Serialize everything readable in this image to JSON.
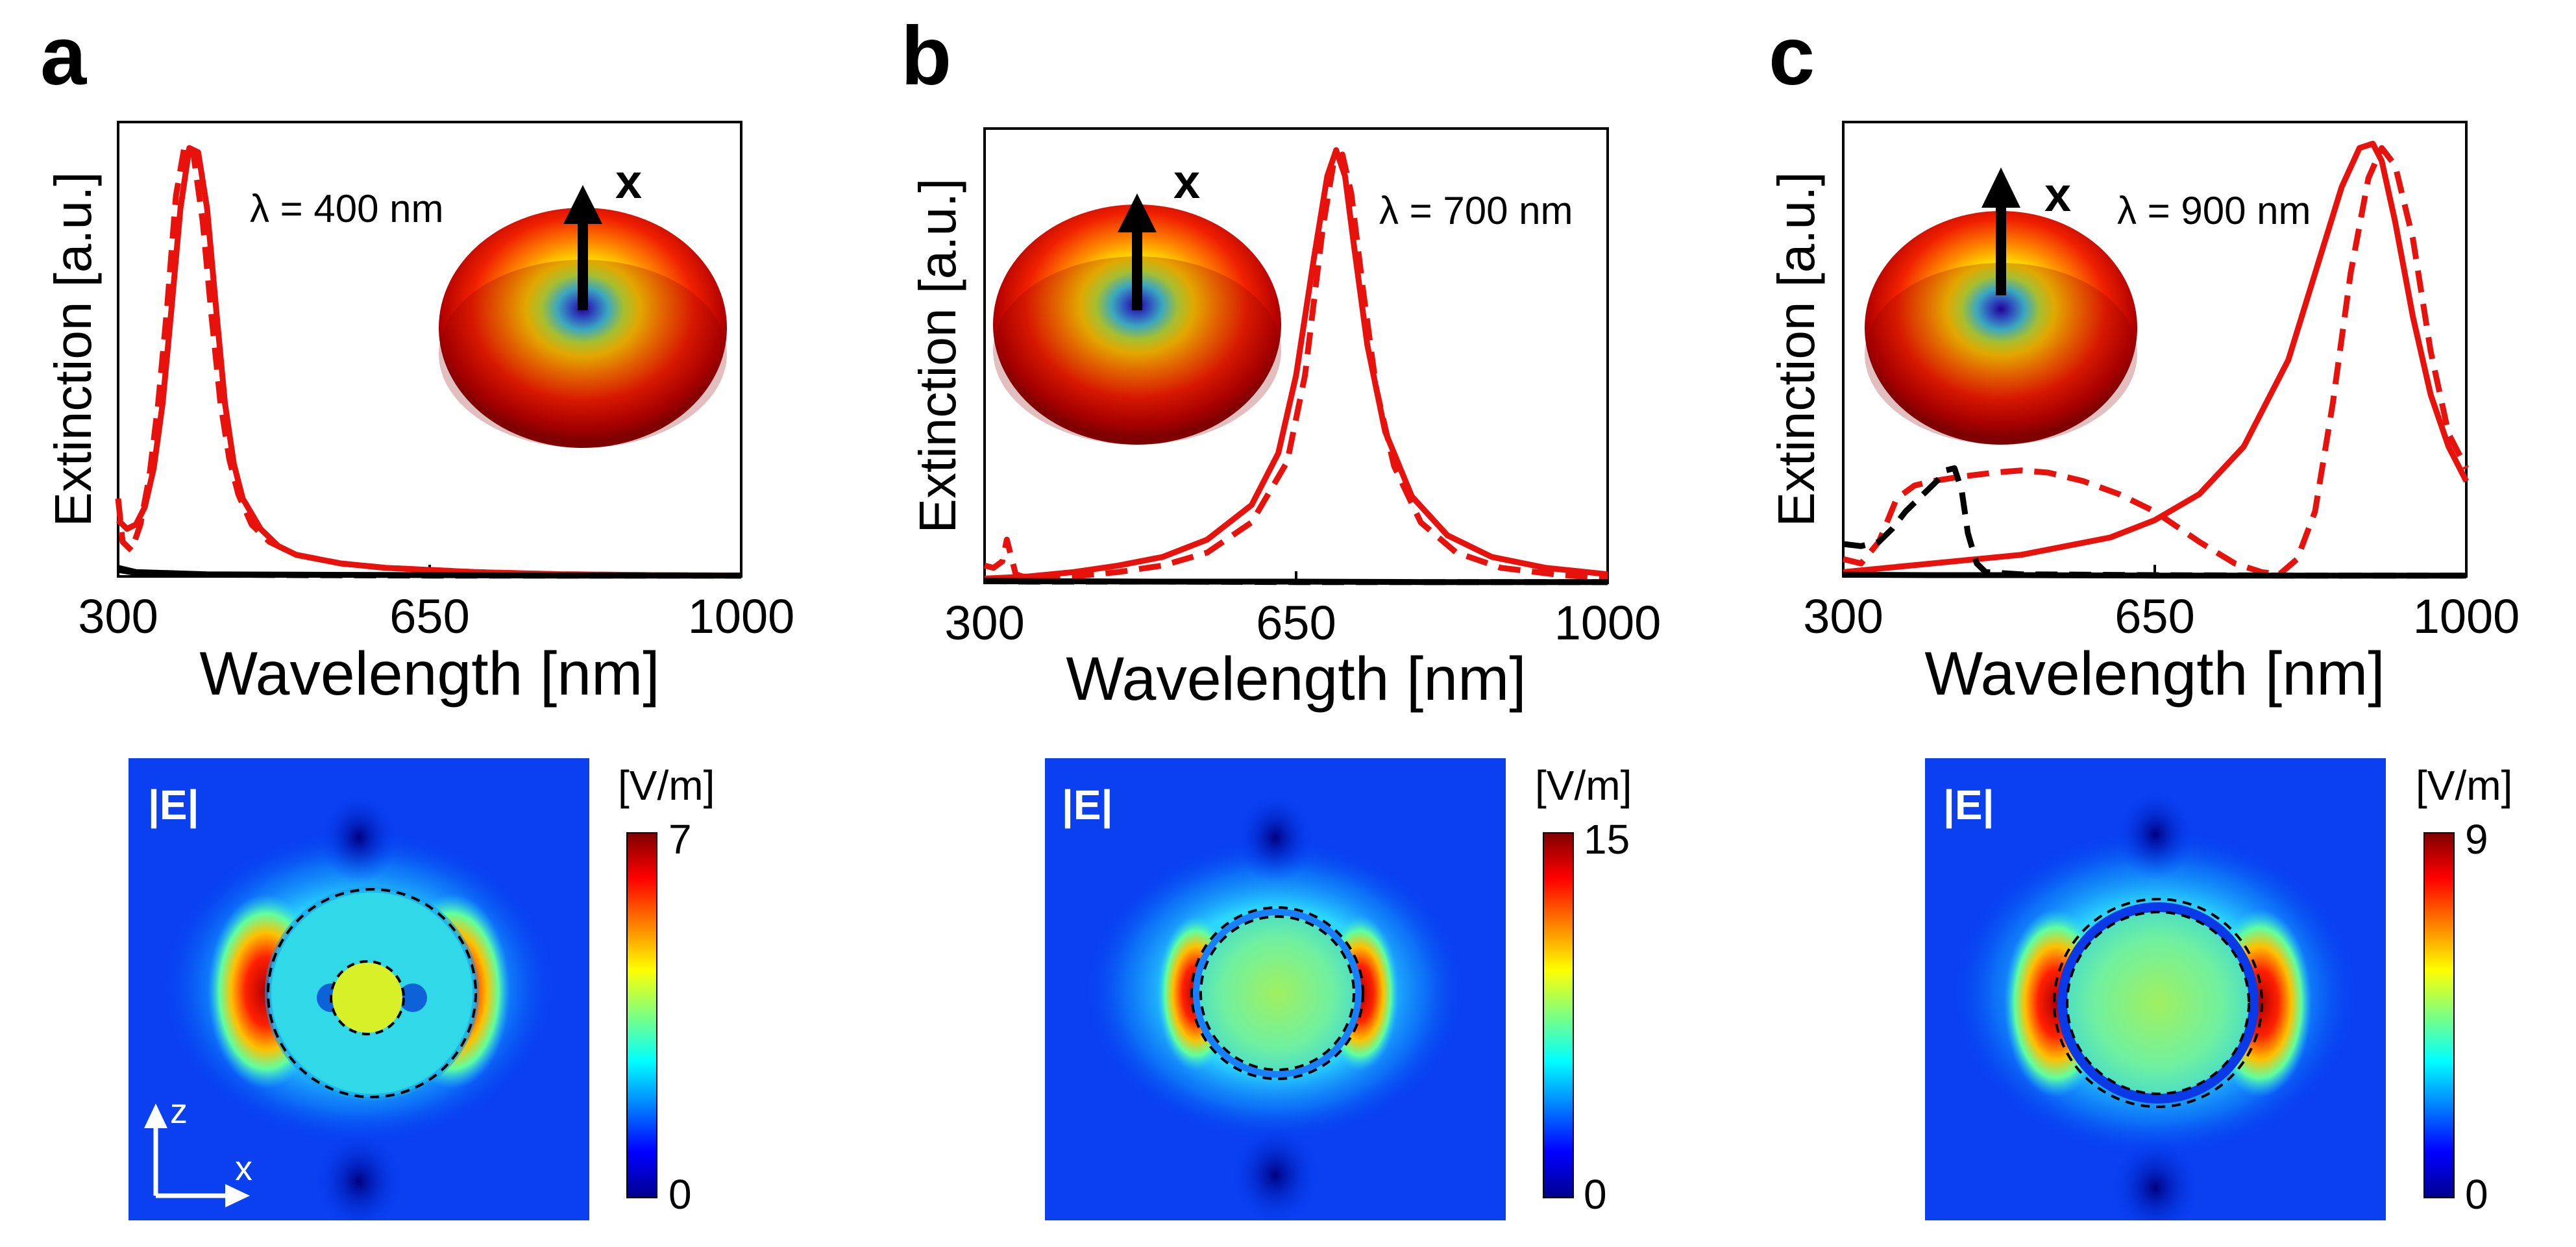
{
  "chart_data": [
    {
      "panel_label": "a",
      "type": "line",
      "xlabel": "Wavelength [nm]",
      "ylabel": "Extinction [a.u.]",
      "xlim": [
        300,
        1000
      ],
      "ylim": [
        0,
        1.05
      ],
      "xticks": [
        "300",
        "650",
        "1000"
      ],
      "annotation": "λ = 400 nm",
      "dipole_axis_label": "x",
      "series": [
        {
          "name": "solid-red",
          "color": "#e8120c",
          "style": "solid",
          "x": [
            300,
            310,
            320,
            330,
            340,
            350,
            360,
            370,
            380,
            390,
            400,
            410,
            420,
            430,
            440,
            460,
            480,
            500,
            550,
            600,
            650,
            700,
            800,
            900,
            1000
          ],
          "y": [
            0.13,
            0.11,
            0.12,
            0.16,
            0.25,
            0.4,
            0.62,
            0.85,
            0.99,
            0.98,
            0.85,
            0.62,
            0.4,
            0.26,
            0.18,
            0.11,
            0.07,
            0.05,
            0.03,
            0.02,
            0.015,
            0.01,
            0.005,
            0.003,
            0.002
          ]
        },
        {
          "name": "dashed-red",
          "color": "#e8120c",
          "style": "dashed",
          "x": [
            300,
            305,
            315,
            325,
            335,
            345,
            355,
            365,
            375,
            385,
            395,
            405,
            415,
            425,
            435,
            450,
            470,
            500,
            550,
            600,
            650,
            700,
            800,
            900,
            1000
          ],
          "y": [
            0.18,
            0.08,
            0.06,
            0.12,
            0.23,
            0.4,
            0.62,
            0.88,
            1.0,
            0.97,
            0.82,
            0.6,
            0.4,
            0.27,
            0.19,
            0.12,
            0.08,
            0.05,
            0.03,
            0.02,
            0.015,
            0.01,
            0.005,
            0.003,
            0.002
          ]
        },
        {
          "name": "solid-black",
          "color": "#000000",
          "style": "solid",
          "x": [
            300,
            320,
            400,
            500,
            650,
            800,
            1000
          ],
          "y": [
            0.02,
            0.01,
            0.005,
            0.004,
            0.003,
            0.002,
            0.002
          ]
        },
        {
          "name": "dashed-black",
          "color": "#000000",
          "style": "dashed",
          "x": [
            300,
            320,
            400,
            500,
            650,
            800,
            1000
          ],
          "y": [
            0.015,
            0.008,
            0.004,
            0.003,
            0.002,
            0.002,
            0.002
          ]
        }
      ],
      "colorbar": {
        "unit": "[V/m]",
        "max_label": "7",
        "min_label": "0"
      },
      "field_label": "|E|",
      "coord_labels": {
        "z": "z",
        "x": "x"
      }
    },
    {
      "panel_label": "b",
      "type": "line",
      "xlabel": "Wavelength [nm]",
      "ylabel": "Extinction [a.u.]",
      "xlim": [
        300,
        1000
      ],
      "ylim": [
        0,
        1.05
      ],
      "xticks": [
        "300",
        "650",
        "1000"
      ],
      "annotation": "λ = 700 nm",
      "dipole_axis_label": "x",
      "series": [
        {
          "name": "solid-red",
          "color": "#e8120c",
          "style": "solid",
          "x": [
            300,
            350,
            400,
            450,
            500,
            550,
            600,
            630,
            650,
            670,
            685,
            695,
            705,
            715,
            730,
            750,
            780,
            820,
            870,
            930,
            1000
          ],
          "y": [
            0.01,
            0.015,
            0.025,
            0.04,
            0.06,
            0.1,
            0.18,
            0.3,
            0.48,
            0.75,
            0.94,
            1.0,
            0.94,
            0.78,
            0.55,
            0.35,
            0.2,
            0.11,
            0.06,
            0.035,
            0.02
          ]
        },
        {
          "name": "dashed-red",
          "color": "#e8120c",
          "style": "dashed",
          "x": [
            300,
            310,
            320,
            325,
            335,
            350,
            400,
            450,
            500,
            550,
            600,
            640,
            660,
            680,
            692,
            702,
            712,
            725,
            740,
            760,
            790,
            830,
            880,
            940,
            1000
          ],
          "y": [
            0.04,
            0.035,
            0.05,
            0.1,
            0.02,
            0.01,
            0.015,
            0.025,
            0.04,
            0.07,
            0.14,
            0.28,
            0.48,
            0.82,
            0.97,
            0.99,
            0.9,
            0.68,
            0.45,
            0.27,
            0.14,
            0.07,
            0.035,
            0.02,
            0.01
          ]
        },
        {
          "name": "solid-black",
          "color": "#000000",
          "style": "solid",
          "x": [
            300,
            350,
            500,
            650,
            800,
            1000
          ],
          "y": [
            0.005,
            0.004,
            0.003,
            0.003,
            0.002,
            0.002
          ]
        },
        {
          "name": "dashed-black",
          "color": "#000000",
          "style": "dashed",
          "x": [
            300,
            350,
            500,
            650,
            800,
            1000
          ],
          "y": [
            0.004,
            0.003,
            0.003,
            0.002,
            0.002,
            0.002
          ]
        }
      ],
      "colorbar": {
        "unit": "[V/m]",
        "max_label": "15",
        "min_label": "0"
      },
      "field_label": "|E|"
    },
    {
      "panel_label": "c",
      "type": "line",
      "xlabel": "Wavelength [nm]",
      "ylabel": "Extinction [a.u.]",
      "xlim": [
        300,
        1000
      ],
      "ylim": [
        0,
        1.05
      ],
      "xticks": [
        "300",
        "650",
        "1000"
      ],
      "annotation": "λ = 900 nm",
      "dipole_axis_label": "x",
      "series": [
        {
          "name": "solid-red",
          "color": "#e8120c",
          "style": "solid",
          "x": [
            300,
            400,
            500,
            600,
            650,
            700,
            750,
            800,
            830,
            860,
            880,
            895,
            905,
            920,
            940,
            960,
            980,
            1000
          ],
          "y": [
            0.01,
            0.03,
            0.05,
            0.09,
            0.13,
            0.19,
            0.3,
            0.5,
            0.7,
            0.9,
            0.99,
            1.0,
            0.96,
            0.82,
            0.6,
            0.42,
            0.3,
            0.22
          ]
        },
        {
          "name": "dashed-red",
          "color": "#e8120c",
          "style": "dashed",
          "x": [
            300,
            320,
            340,
            360,
            380,
            400,
            430,
            470,
            500,
            530,
            570,
            610,
            650,
            700,
            740,
            770,
            790,
            810,
            830,
            850,
            870,
            890,
            905,
            920,
            940,
            960,
            980,
            1000
          ],
          "y": [
            0.04,
            0.03,
            0.08,
            0.18,
            0.21,
            0.22,
            0.23,
            0.24,
            0.245,
            0.24,
            0.22,
            0.19,
            0.15,
            0.08,
            0.03,
            0.01,
            0.005,
            0.04,
            0.15,
            0.4,
            0.7,
            0.92,
            0.99,
            0.95,
            0.78,
            0.52,
            0.33,
            0.25
          ]
        },
        {
          "name": "dashed-black",
          "color": "#000000",
          "style": "dashed",
          "x": [
            300,
            320,
            340,
            355,
            370,
            390,
            405,
            415,
            425,
            433,
            440,
            450,
            460,
            500,
            650,
            800,
            1000
          ],
          "y": [
            0.075,
            0.07,
            0.08,
            0.11,
            0.15,
            0.19,
            0.22,
            0.245,
            0.25,
            0.2,
            0.1,
            0.03,
            0.01,
            0.005,
            0.003,
            0.002,
            0.002
          ]
        },
        {
          "name": "solid-black",
          "color": "#000000",
          "style": "solid",
          "x": [
            300,
            400,
            500,
            650,
            800,
            1000
          ],
          "y": [
            0.004,
            0.003,
            0.003,
            0.002,
            0.002,
            0.002
          ]
        }
      ],
      "colorbar": {
        "unit": "[V/m]",
        "max_label": "9",
        "min_label": "0"
      },
      "field_label": "|E|"
    }
  ]
}
